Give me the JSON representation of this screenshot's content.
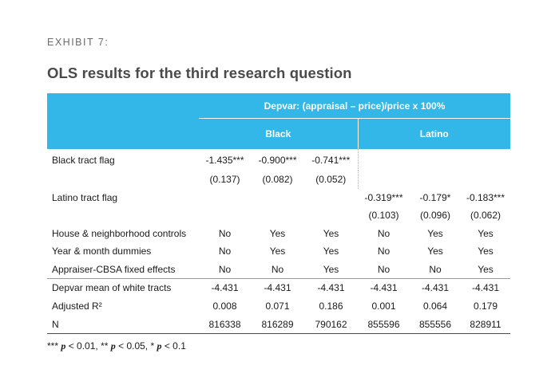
{
  "exhibit_label": "EXHIBIT 7:",
  "title": "OLS results for the third research question",
  "table": {
    "header_top": "Depvar: (appraisal – price)/price x 100%",
    "group_black": "Black",
    "group_latino": "Latino",
    "rows": {
      "black_flag": {
        "label": "Black tract flag",
        "v": [
          "-1.435***",
          "-0.900***",
          "-0.741***",
          "",
          "",
          ""
        ]
      },
      "black_se": {
        "label": "",
        "v": [
          "(0.137)",
          "(0.082)",
          "(0.052)",
          "",
          "",
          ""
        ]
      },
      "latino_flag": {
        "label": "Latino tract flag",
        "v": [
          "",
          "",
          "",
          "-0.319***",
          "-0.179*",
          "-0.183***"
        ]
      },
      "latino_se": {
        "label": "",
        "v": [
          "",
          "",
          "",
          "(0.103)",
          "(0.096)",
          "(0.062)"
        ]
      },
      "house": {
        "label": "House & neighborhood controls",
        "v": [
          "No",
          "Yes",
          "Yes",
          "No",
          "Yes",
          "Yes"
        ]
      },
      "year": {
        "label": "Year & month dummies",
        "v": [
          "No",
          "Yes",
          "Yes",
          "No",
          "Yes",
          "Yes"
        ]
      },
      "appraiser": {
        "label": "Appraiser-CBSA fixed effects",
        "v": [
          "No",
          "No",
          "Yes",
          "No",
          "No",
          "Yes"
        ]
      },
      "depvar_mean": {
        "label": "Depvar mean of white tracts",
        "v": [
          "-4.431",
          "-4.431",
          "-4.431",
          "-4.431",
          "-4.431",
          "-4.431"
        ]
      },
      "adj_r2": {
        "label": "Adjusted R²",
        "v": [
          "0.008",
          "0.071",
          "0.186",
          "0.001",
          "0.064",
          "0.179"
        ]
      },
      "n": {
        "label": "N",
        "v": [
          "816338",
          "816289",
          "790162",
          "855596",
          "855556",
          "828911"
        ]
      }
    }
  },
  "footnote": {
    "stars3": "***",
    "p1": "p",
    "lt1": "< 0.01, **",
    "p2": "p",
    "lt2": "< 0.05, *",
    "p3": "p",
    "lt3": "< 0.1"
  }
}
